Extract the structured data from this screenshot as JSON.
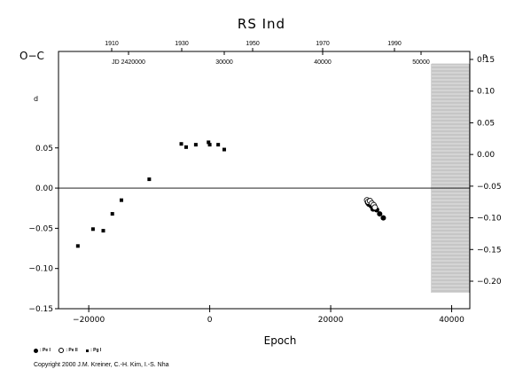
{
  "chart_data": {
    "type": "scatter",
    "title": "RS  Ind",
    "xlabel": "Epoch",
    "ylabel": "O−C",
    "xlim": [
      -25000,
      43000
    ],
    "ylim": [
      -0.15,
      0.17
    ],
    "x_ticks": [
      -20000,
      0,
      20000,
      40000
    ],
    "x_tick_labels": [
      "−20000",
      "0",
      "20000",
      "40000"
    ],
    "y_ticks_left": [
      -0.15,
      -0.1,
      -0.05,
      0.0,
      0.05
    ],
    "y_tick_labels_left": [
      "−0.15",
      "−0.10",
      "−0.05",
      "0.00",
      "0.05"
    ],
    "y_ticks_right": [
      0.15,
      0.1,
      0.05,
      0.0,
      -0.05,
      -0.1,
      -0.15,
      -0.2
    ],
    "y_tick_labels_right": [
      "0.15",
      "0.10",
      "0.05",
      "0.00",
      "−0.05",
      "−0.10",
      "−0.15",
      "−0.20"
    ],
    "top_year_ticks": [
      "1910",
      "1930",
      "1950",
      "1970",
      "1990"
    ],
    "top_jd_ticks": [
      "JD 2420000",
      "30000",
      "40000",
      "50000"
    ],
    "grid": false,
    "zero_line": true,
    "legend_position": "bottom-left",
    "series": [
      {
        "name": ": Pe I",
        "symbol": "filled-circle",
        "points": [
          [
            26100,
            -0.018
          ],
          [
            26300,
            -0.02
          ],
          [
            26700,
            -0.022
          ],
          [
            27000,
            -0.026
          ],
          [
            27200,
            -0.025
          ],
          [
            27600,
            -0.027
          ],
          [
            28100,
            -0.032
          ],
          [
            28700,
            -0.037
          ]
        ]
      },
      {
        "name": ": Pe II",
        "symbol": "open-circle",
        "points": [
          [
            26000,
            -0.015
          ],
          [
            26200,
            -0.017
          ],
          [
            26500,
            -0.016
          ],
          [
            26800,
            -0.019
          ],
          [
            27100,
            -0.021
          ],
          [
            27300,
            -0.024
          ]
        ]
      },
      {
        "name": ": Pg I",
        "symbol": "filled-square",
        "points": [
          [
            -21800,
            -0.072
          ],
          [
            -19300,
            -0.051
          ],
          [
            -17600,
            -0.053
          ],
          [
            -16100,
            -0.032
          ],
          [
            -14600,
            -0.015
          ],
          [
            -10000,
            0.011
          ],
          [
            -4700,
            0.055
          ],
          [
            -3900,
            0.051
          ],
          [
            -2300,
            0.054
          ],
          [
            -200,
            0.057
          ],
          [
            0,
            0.054
          ],
          [
            1400,
            0.054
          ],
          [
            2400,
            0.048
          ]
        ]
      }
    ],
    "annotations": {
      "left_unit": "d",
      "right_unit": "P"
    }
  },
  "copyright": "Copyright 2000 J.M. Kreiner, C.-H. Kim, I.-S. Nha"
}
